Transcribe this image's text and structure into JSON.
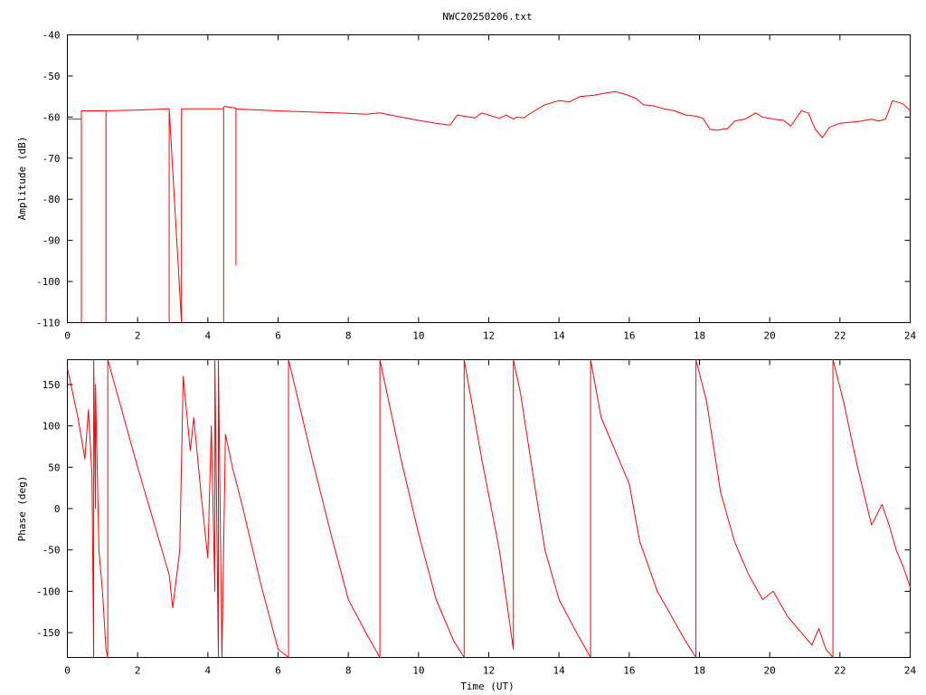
{
  "title": "NWC20250206.txt",
  "chart_data": [
    {
      "type": "line",
      "ylabel": "Amplitude (dB)",
      "xlabel": "",
      "xlim": [
        0,
        24
      ],
      "ylim": [
        -110,
        -40
      ],
      "xticks": [
        "0",
        "2",
        "4",
        "6",
        "8",
        "10",
        "12",
        "14",
        "16",
        "18",
        "20",
        "22",
        "24"
      ],
      "yticks": [
        "-40",
        "-50",
        "-60",
        "-70",
        "-80",
        "-90",
        "-100",
        "-110"
      ],
      "series": [
        {
          "color": "#ff0000",
          "x": [
            0,
            0.4,
            0.4,
            0.4,
            1.1,
            1.1,
            1.1,
            2.0,
            2.9,
            2.9,
            2.9,
            3.25,
            3.25,
            3.25,
            4.45,
            4.45,
            4.45,
            4.5,
            4.6,
            4.8,
            4.8,
            4.8,
            5.0,
            6.0,
            7.0,
            8.0,
            8.5,
            8.9,
            9.5,
            10.0,
            10.5,
            10.9,
            11.1,
            11.3,
            11.6,
            11.8,
            12.0,
            12.3,
            12.5,
            12.7,
            12.8,
            13.0,
            13.3,
            13.6,
            13.8,
            14.0,
            14.3,
            14.6,
            15.0,
            15.3,
            15.6,
            15.9,
            16.2,
            16.4,
            16.7,
            17.0,
            17.3,
            17.6,
            17.9,
            18.1,
            18.3,
            18.5,
            18.8,
            19.0,
            19.3,
            19.6,
            19.8,
            20.1,
            20.4,
            20.6,
            20.9,
            21.1,
            21.3,
            21.5,
            21.7,
            22.0,
            22.4,
            22.6,
            22.9,
            23.1,
            23.3,
            23.5,
            23.8,
            24.0
          ],
          "y": [
            -60.5,
            -60.5,
            -110,
            -58.5,
            -58.5,
            -110,
            -58.5,
            -58.3,
            -58.0,
            -110,
            -58.0,
            -110,
            -100,
            -58.0,
            -58.0,
            -110,
            -57.5,
            -57.4,
            -57.6,
            -57.8,
            -96,
            -58.0,
            -58.1,
            -58.5,
            -58.8,
            -59.1,
            -59.3,
            -59.0,
            -60.0,
            -60.8,
            -61.5,
            -62.0,
            -59.5,
            -59.8,
            -60.2,
            -59.0,
            -59.5,
            -60.3,
            -59.5,
            -60.5,
            -60.0,
            -60.2,
            -58.5,
            -57.0,
            -56.5,
            -56.0,
            -56.3,
            -55.0,
            -54.7,
            -54.2,
            -53.8,
            -54.5,
            -55.5,
            -57.0,
            -57.3,
            -58.0,
            -58.5,
            -59.5,
            -59.8,
            -60.3,
            -63.0,
            -63.2,
            -62.8,
            -61.0,
            -60.5,
            -59.0,
            -60.0,
            -60.5,
            -60.8,
            -62.2,
            -58.5,
            -59.0,
            -63.0,
            -65.0,
            -62.5,
            -61.5,
            -61.2,
            -61.0,
            -60.5,
            -61.0,
            -60.5,
            -56.0,
            -56.8,
            -58.5
          ]
        }
      ]
    },
    {
      "type": "line",
      "ylabel": "Phase (deg)",
      "xlabel": "Time (UT)",
      "xlim": [
        0,
        24
      ],
      "ylim": [
        -180,
        180
      ],
      "xticks": [
        "0",
        "2",
        "4",
        "6",
        "8",
        "10",
        "12",
        "14",
        "16",
        "18",
        "20",
        "22",
        "24"
      ],
      "yticks": [
        "150",
        "100",
        "50",
        "0",
        "-50",
        "-100",
        "-150"
      ],
      "series": [
        {
          "color": "#ff0000",
          "x": [
            0,
            0.3,
            0.5,
            0.6,
            0.7,
            0.75,
            0.75,
            0.8,
            0.8,
            0.9,
            1.0,
            1.1,
            1.15,
            1.15,
            2.0,
            2.9,
            3.0,
            3.2,
            3.3,
            3.5,
            3.6,
            3.8,
            4.0,
            4.1,
            4.2,
            4.2,
            4.3,
            4.3,
            4.4,
            4.5,
            4.7,
            5.0,
            5.5,
            6.0,
            6.3,
            6.3,
            7.0,
            7.5,
            8.0,
            8.5,
            8.9,
            8.9,
            9.5,
            10.0,
            10.5,
            11.0,
            11.3,
            11.3,
            11.8,
            12.3,
            12.7,
            12.7,
            12.9,
            13.3,
            13.6,
            14.0,
            14.5,
            14.9,
            14.9,
            15.2,
            15.6,
            16.0,
            16.3,
            16.8,
            17.2,
            17.6,
            17.9,
            17.9,
            18.2,
            18.6,
            19.0,
            19.4,
            19.8,
            20.1,
            20.5,
            20.9,
            21.2,
            21.4,
            21.6,
            21.8,
            21.8,
            22.1,
            22.5,
            22.9,
            23.2,
            23.4,
            23.6,
            23.8,
            24.0
          ],
          "y": [
            170,
            110,
            60,
            120,
            40,
            -180,
            180,
            0,
            150,
            -50,
            -100,
            -170,
            -180,
            180,
            50,
            -80,
            -120,
            -50,
            160,
            70,
            110,
            20,
            -60,
            100,
            -100,
            180,
            -180,
            180,
            -180,
            90,
            50,
            0,
            -90,
            -170,
            -180,
            180,
            55,
            -30,
            -110,
            -150,
            -180,
            180,
            60,
            -30,
            -110,
            -160,
            -180,
            180,
            60,
            -50,
            -170,
            180,
            140,
            30,
            -50,
            -110,
            -150,
            -180,
            180,
            110,
            70,
            30,
            -40,
            -100,
            -130,
            -160,
            -180,
            180,
            130,
            20,
            -40,
            -80,
            -110,
            -100,
            -130,
            -150,
            -165,
            -145,
            -170,
            -180,
            180,
            130,
            50,
            -20,
            5,
            -20,
            -50,
            -70,
            -95
          ]
        }
      ]
    }
  ]
}
